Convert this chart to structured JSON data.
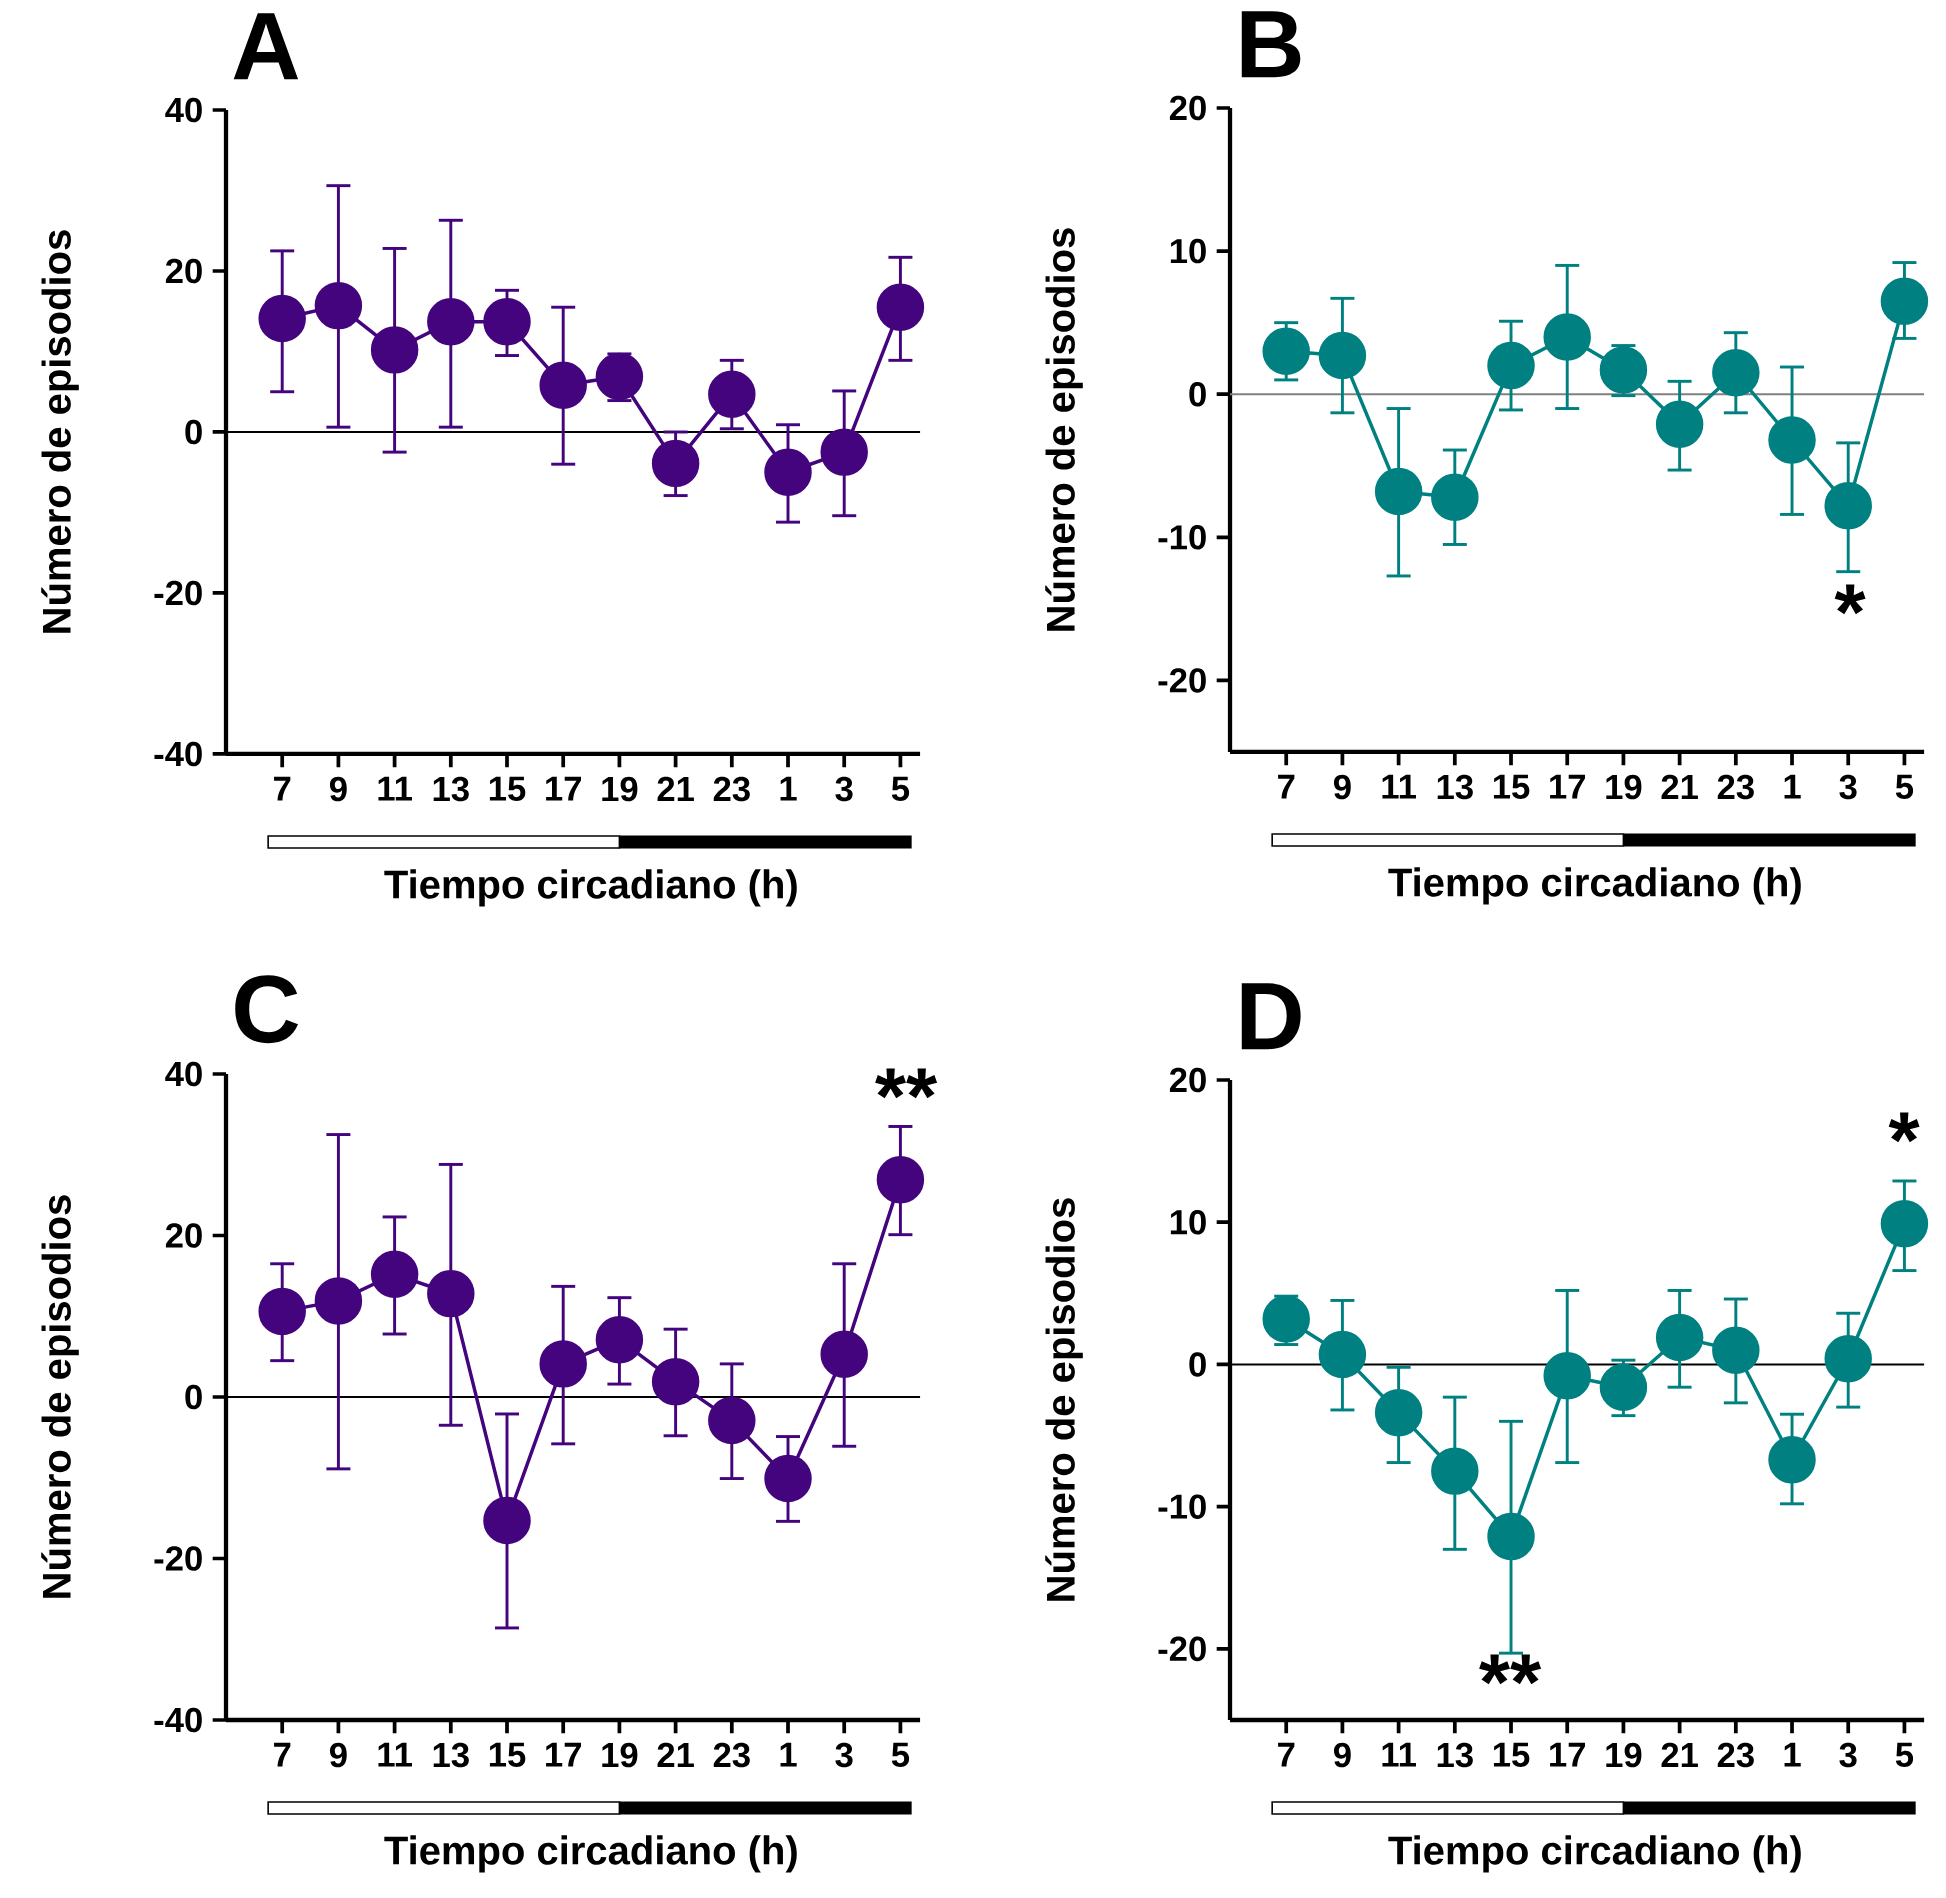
{
  "chart_data": [
    {
      "type": "line",
      "title": "A",
      "xlabel": "Tiempo circadiano (h)",
      "ylabel": "Número de episodios",
      "categories": [
        "7",
        "9",
        "11",
        "13",
        "15",
        "17",
        "19",
        "21",
        "23",
        "1",
        "3",
        "5"
      ],
      "ylim": [
        -40,
        40
      ],
      "yticks": [
        -40,
        -20,
        0,
        20,
        40
      ],
      "marker": "circle",
      "ref_lines": [
        {
          "axis": "y",
          "value": 0,
          "color": "#000000"
        }
      ],
      "series": [
        {
          "color": "#43047e",
          "values": [
            14.1,
            15.7,
            10.2,
            13.7,
            13.7,
            5.8,
            6.9,
            -3.9,
            4.7,
            -5.0,
            -2.5,
            15.5
          ],
          "errors": [
            [
              5.0,
              22.5
            ],
            [
              0.6,
              30.6
            ],
            [
              -2.5,
              22.8
            ],
            [
              0.6,
              26.3
            ],
            [
              9.5,
              17.6
            ],
            [
              -4.0,
              15.5
            ],
            [
              3.9,
              9.7
            ],
            [
              -7.9,
              0.0
            ],
            [
              0.4,
              8.9
            ],
            [
              -11.2,
              0.9
            ],
            [
              -10.4,
              5.1
            ],
            [
              8.9,
              21.7
            ]
          ]
        }
      ]
    },
    {
      "type": "line",
      "title": "B",
      "xlabel": "Tiempo circadiano (h)",
      "ylabel": "Número de episodios",
      "categories": [
        "7",
        "9",
        "11",
        "13",
        "15",
        "17",
        "19",
        "21",
        "23",
        "1",
        "3",
        "5"
      ],
      "ylim": [
        -25,
        20
      ],
      "yticks": [
        -20,
        -10,
        0,
        10,
        20
      ],
      "marker": "circle",
      "ref_lines": [
        {
          "axis": "y",
          "value": 0,
          "color": "#808080"
        }
      ],
      "annotations": [
        "*"
      ],
      "series": [
        {
          "color": "#008080",
          "values": [
            3.0,
            2.7,
            -6.8,
            -7.2,
            2.0,
            4.0,
            1.7,
            -2.1,
            1.5,
            -3.2,
            -7.8,
            6.5
          ],
          "errors": [
            [
              1.0,
              5.0
            ],
            [
              -1.3,
              6.7
            ],
            [
              -12.7,
              -1.0
            ],
            [
              -10.5,
              -3.9
            ],
            [
              -1.1,
              5.1
            ],
            [
              -1.0,
              9.0
            ],
            [
              -0.1,
              3.4
            ],
            [
              -5.3,
              0.9
            ],
            [
              -1.3,
              4.3
            ],
            [
              -8.4,
              1.9
            ],
            [
              -12.4,
              -3.4
            ],
            [
              3.9,
              9.2
            ]
          ]
        }
      ]
    },
    {
      "type": "line",
      "title": "C",
      "xlabel": "Tiempo circadiano (h)",
      "ylabel": "Número de episodios",
      "categories": [
        "7",
        "9",
        "11",
        "13",
        "15",
        "17",
        "19",
        "21",
        "23",
        "1",
        "3",
        "5"
      ],
      "ylim": [
        -40,
        40
      ],
      "yticks": [
        -40,
        -20,
        0,
        20,
        40
      ],
      "marker": "circle",
      "ref_lines": [
        {
          "axis": "y",
          "value": 0,
          "color": "#000000"
        }
      ],
      "annotations": [
        "**"
      ],
      "series": [
        {
          "color": "#43047e",
          "values": [
            10.6,
            11.9,
            15.2,
            12.8,
            -15.3,
            4.1,
            7.1,
            1.9,
            -2.9,
            -10.1,
            5.3,
            26.9
          ],
          "errors": [
            [
              4.5,
              16.5
            ],
            [
              -8.9,
              32.5
            ],
            [
              7.8,
              22.3
            ],
            [
              -3.5,
              28.8
            ],
            [
              -28.6,
              -2.1
            ],
            [
              -5.8,
              13.7
            ],
            [
              1.6,
              12.3
            ],
            [
              -4.8,
              8.4
            ],
            [
              -10.1,
              4.1
            ],
            [
              -15.4,
              -4.9
            ],
            [
              -6.1,
              16.5
            ],
            [
              20.1,
              33.5
            ]
          ]
        }
      ]
    },
    {
      "type": "line",
      "title": "D",
      "xlabel": "Tiempo circadiano (h)",
      "ylabel": "Número de episodios",
      "categories": [
        "7",
        "9",
        "11",
        "13",
        "15",
        "17",
        "19",
        "21",
        "23",
        "1",
        "3",
        "5"
      ],
      "ylim": [
        -25,
        20
      ],
      "yticks": [
        -20,
        -10,
        0,
        10,
        20
      ],
      "marker": "circle",
      "ref_lines": [
        {
          "axis": "y",
          "value": 0,
          "color": "#000000"
        }
      ],
      "annotations": [
        "**",
        "*"
      ],
      "series": [
        {
          "color": "#008080",
          "values": [
            3.2,
            0.7,
            -3.4,
            -7.5,
            -12.1,
            -0.8,
            -1.6,
            1.9,
            1.0,
            -6.7,
            0.4,
            9.9
          ],
          "errors": [
            [
              1.4,
              4.8
            ],
            [
              -3.2,
              4.5
            ],
            [
              -6.9,
              -0.2
            ],
            [
              -13.0,
              -2.3
            ],
            [
              -20.3,
              -4.0
            ],
            [
              -6.9,
              5.2
            ],
            [
              -3.6,
              0.3
            ],
            [
              -1.6,
              5.2
            ],
            [
              -2.7,
              4.6
            ],
            [
              -9.8,
              -3.5
            ],
            [
              -3.0,
              3.6
            ],
            [
              6.6,
              12.9
            ]
          ]
        }
      ]
    }
  ]
}
